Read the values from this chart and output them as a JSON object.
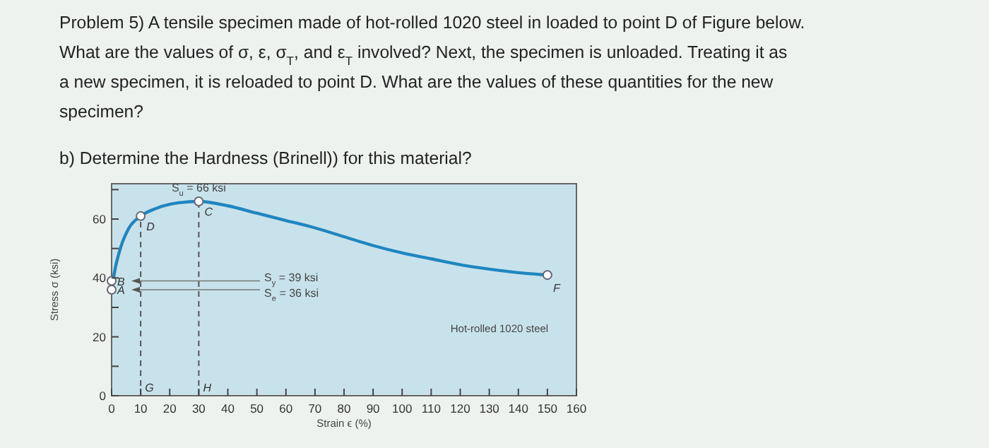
{
  "chart_data": {
    "type": "line",
    "title": "Problem 5) A tensile specimen made of hot-rolled 1020 steel in loaded to point D of Figure below. What are the values of σ, ε, σ$_{T}$, and ε$_{T}$ involved? Next, the specimen is unloaded. Treating it as a new specimen, it is reloaded to point D. What are the values of these quantities for the new specimen?",
    "subtitle": "b) Determine the Hardness (Brinell)) for this material?",
    "xlabel": "Strain ϵ (%)",
    "ylabel": "Stress σ (ksi)",
    "xlim": [
      0,
      160
    ],
    "xticks": [
      0,
      10,
      20,
      30,
      40,
      50,
      60,
      70,
      80,
      90,
      100,
      110,
      120,
      130,
      140,
      150,
      160
    ],
    "ylim": [
      0,
      72
    ],
    "yticks": [
      0,
      {
        "value": 10,
        "label": null
      },
      20,
      {
        "value": 30,
        "label": null
      },
      40,
      {
        "value": 50,
        "label": null
      },
      60,
      {
        "value": 70,
        "label": null
      }
    ],
    "grid": false,
    "line_style": "solid",
    "series": [
      {
        "type": "line",
        "color": "#1f86bf",
        "marker": "none",
        "x": [
          0,
          0.5,
          1,
          3,
          6,
          10,
          15,
          20,
          30,
          40,
          50,
          60,
          70,
          80,
          90,
          100,
          110,
          120,
          130,
          140,
          150
        ],
        "values": [
          36,
          39,
          42,
          50,
          57,
          61,
          63.5,
          65,
          66,
          64.5,
          62,
          59.5,
          57,
          54,
          51,
          48.5,
          46.5,
          44.5,
          43,
          41.8,
          41
        ]
      },
      {
        "type": "scatter",
        "color": "#ffffff",
        "marker": "circle",
        "x": [
          0,
          0,
          10,
          30,
          150
        ],
        "values": [
          36,
          39,
          61,
          66,
          41
        ]
      }
    ],
    "ref_lines": [
      {
        "axis": "x",
        "value": 10,
        "label": "G",
        "line_style": "dashed",
        "color": "#555555"
      },
      {
        "axis": "x",
        "value": 30,
        "label": "H",
        "line_style": "dashed",
        "color": "#555555"
      }
    ],
    "annotations": [
      {
        "text": "A",
        "x": 0,
        "y": 36
      },
      {
        "text": "B",
        "x": 0,
        "y": 39
      },
      {
        "text": "D",
        "x": 10,
        "y": 61
      },
      {
        "text": "C",
        "x": 30,
        "y": 66
      },
      {
        "text": "F",
        "x": 150,
        "y": 41
      },
      {
        "text": "S$_{u}$ = 66 ksi",
        "x": 30,
        "y": 66
      },
      "S$_{y}$ = 39 ksi",
      "S$_{e}$ = 36 ksi",
      "Hot-rolled 1020 steel"
    ]
  }
}
